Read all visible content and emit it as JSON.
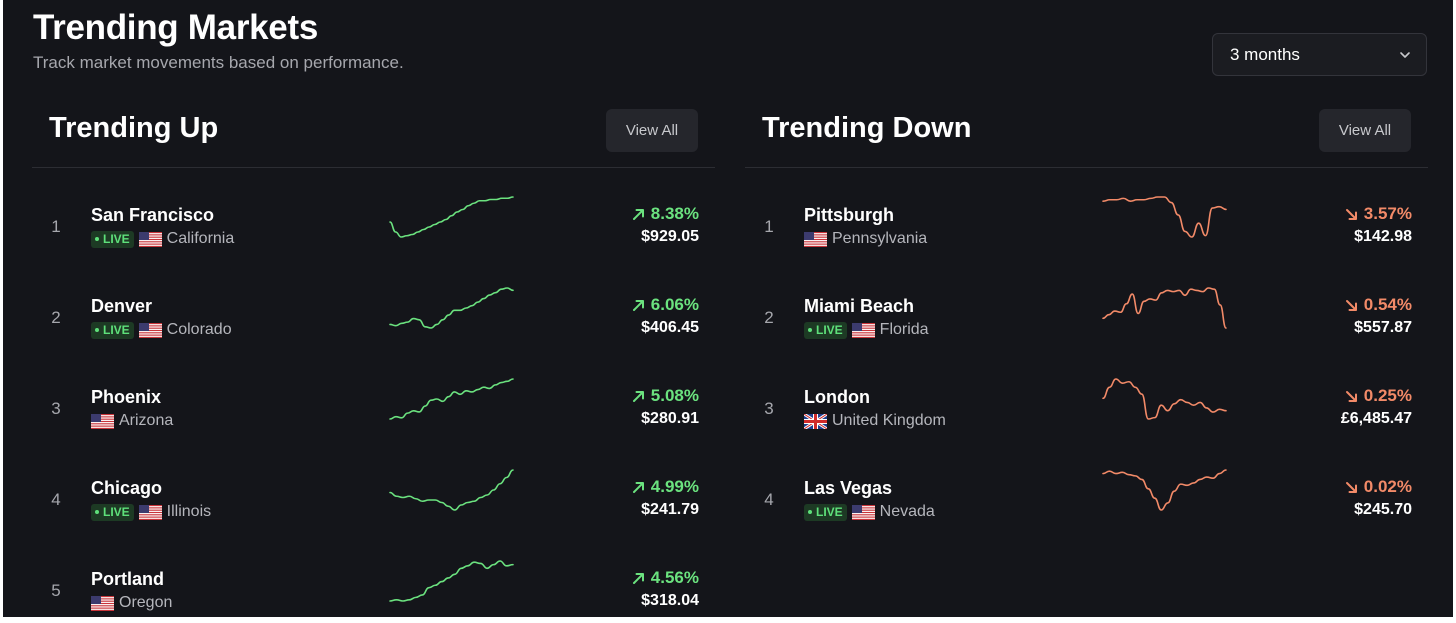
{
  "header": {
    "title": "Trending Markets",
    "subtitle": "Track market movements based on performance.",
    "period_select": {
      "value": "3 months"
    }
  },
  "colors": {
    "up": "#6be27f",
    "down": "#f28a68",
    "background": "#14151a"
  },
  "trending_up": {
    "title": "Trending Up",
    "view_all_label": "View All",
    "items": [
      {
        "rank": "1",
        "city": "San Francisco",
        "live": true,
        "live_label": "LIVE",
        "flag": "us-flag-icon",
        "region": "California",
        "change": "8.38%",
        "price": "$929.05",
        "trend": [
          20,
          28,
          32,
          31,
          30,
          28,
          26,
          24,
          22,
          20,
          18,
          15,
          12,
          10,
          7,
          5,
          3,
          3,
          2,
          2,
          1,
          1,
          0
        ]
      },
      {
        "rank": "2",
        "city": "Denver",
        "live": true,
        "live_label": "LIVE",
        "flag": "us-flag-icon",
        "region": "Colorado",
        "change": "6.06%",
        "price": "$406.45",
        "trend": [
          31,
          32,
          30,
          29,
          26,
          27,
          33,
          34,
          31,
          27,
          23,
          19,
          19,
          17,
          15,
          12,
          9,
          6,
          4,
          1,
          0,
          2
        ]
      },
      {
        "rank": "3",
        "city": "Phoenix",
        "live": false,
        "flag": "us-flag-icon",
        "region": "Arizona",
        "change": "5.08%",
        "price": "$280.91",
        "trend": [
          34,
          32,
          33,
          29,
          27,
          28,
          23,
          18,
          17,
          19,
          15,
          11,
          13,
          10,
          11,
          9,
          7,
          8,
          5,
          3,
          2,
          0
        ]
      },
      {
        "rank": "4",
        "city": "Chicago",
        "live": true,
        "live_label": "LIVE",
        "flag": "us-flag-icon",
        "region": "Illinois",
        "change": "4.99%",
        "price": "$241.79",
        "trend": [
          18,
          21,
          22,
          21,
          23,
          25,
          24,
          24,
          26,
          29,
          32,
          28,
          26,
          25,
          22,
          20,
          16,
          11,
          6,
          0
        ]
      },
      {
        "rank": "5",
        "city": "Portland",
        "live": false,
        "flag": "us-flag-icon",
        "region": "Oregon",
        "change": "4.56%",
        "price": "$318.04",
        "trend": [
          34,
          33,
          34,
          33,
          31,
          29,
          23,
          21,
          18,
          15,
          12,
          7,
          5,
          2,
          3,
          7,
          4,
          1,
          5,
          4
        ]
      }
    ]
  },
  "trending_down": {
    "title": "Trending Down",
    "view_all_label": "View All",
    "items": [
      {
        "rank": "1",
        "city": "Pittsburgh",
        "live": false,
        "flag": "us-flag-icon",
        "region": "Pennsylvania",
        "change": "3.57%",
        "price": "$142.98",
        "trend": [
          7,
          6,
          6,
          5,
          7,
          6,
          6,
          5,
          4,
          4,
          8,
          17,
          29,
          33,
          23,
          32,
          12,
          11,
          13
        ]
      },
      {
        "rank": "2",
        "city": "Miami Beach",
        "live": true,
        "live_label": "LIVE",
        "flag": "us-flag-icon",
        "region": "Florida",
        "change": "0.54%",
        "price": "$557.87",
        "trend": [
          28,
          25,
          22,
          23,
          16,
          8,
          24,
          14,
          12,
          13,
          7,
          5,
          6,
          5,
          9,
          4,
          5,
          6,
          3,
          4,
          17,
          36
        ]
      },
      {
        "rank": "3",
        "city": "London",
        "live": false,
        "flag": "uk-flag-icon",
        "region": "United Kingdom",
        "change": "0.25%",
        "price": "£6,485.47",
        "trend": [
          18,
          10,
          4,
          7,
          6,
          10,
          15,
          33,
          32,
          23,
          27,
          22,
          19,
          21,
          23,
          21,
          25,
          28,
          26,
          27
        ]
      },
      {
        "rank": "4",
        "city": "Las Vegas",
        "live": true,
        "live_label": "LIVE",
        "flag": "us-flag-icon",
        "region": "Nevada",
        "change": "0.02%",
        "price": "$245.70",
        "trend": [
          5,
          3,
          5,
          4,
          6,
          7,
          10,
          18,
          26,
          36,
          30,
          20,
          14,
          15,
          13,
          10,
          8,
          9,
          5,
          2
        ]
      }
    ]
  }
}
